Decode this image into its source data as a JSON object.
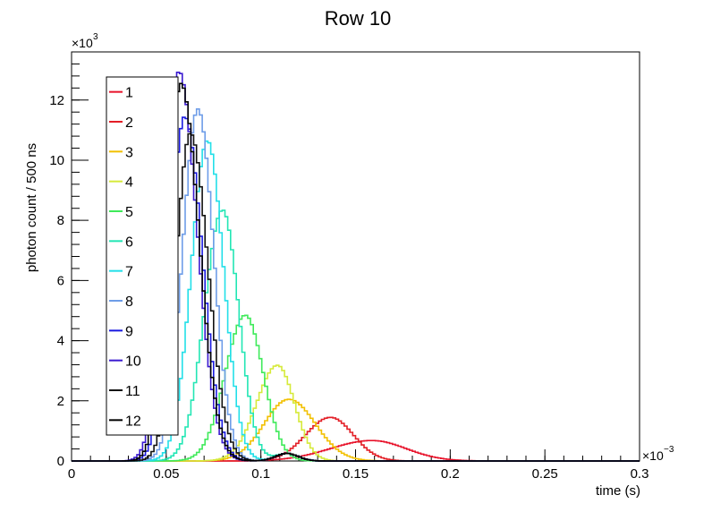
{
  "chart_data": {
    "type": "line",
    "title": "Row 10",
    "xlabel": "time (s)",
    "ylabel": "photon count / 500 ns",
    "x_multiplier_label": "×10",
    "x_multiplier_exp": "−3",
    "y_multiplier_label": "×10",
    "y_multiplier_exp": "3",
    "xlim": [
      0,
      0.3
    ],
    "ylim": [
      0,
      13.6
    ],
    "x_ticks": [
      0,
      0.05,
      0.1,
      0.15,
      0.2,
      0.25,
      0.3
    ],
    "x_tick_labels": [
      "0",
      "0.05",
      "0.1",
      "0.15",
      "0.2",
      "0.25",
      "0.3"
    ],
    "y_ticks": [
      0,
      2,
      4,
      6,
      8,
      10,
      12
    ],
    "y_tick_labels": [
      "0",
      "2",
      "4",
      "6",
      "8",
      "10",
      "12"
    ],
    "grid": false,
    "legend_position": "top-left",
    "series": [
      {
        "name": "1",
        "color": "#e8142c",
        "peak_x": 0.158,
        "peak_y": 0.68,
        "sigma_l": 0.022,
        "sigma_r": 0.018
      },
      {
        "name": "2",
        "color": "#e31e26",
        "peak_x": 0.136,
        "peak_y": 1.45,
        "sigma_l": 0.013,
        "sigma_r": 0.012
      },
      {
        "name": "3",
        "color": "#f2c000",
        "peak_x": 0.114,
        "peak_y": 2.05,
        "sigma_l": 0.013,
        "sigma_r": 0.014
      },
      {
        "name": "4",
        "color": "#d6ea3a",
        "peak_x": 0.108,
        "peak_y": 3.18,
        "sigma_l": 0.011,
        "sigma_r": 0.009
      },
      {
        "name": "5",
        "color": "#3fea5a",
        "peak_x": 0.091,
        "peak_y": 4.85,
        "sigma_l": 0.0105,
        "sigma_r": 0.0095
      },
      {
        "name": "6",
        "color": "#22e6b4",
        "peak_x": 0.079,
        "peak_y": 8.35,
        "sigma_l": 0.0095,
        "sigma_r": 0.0085
      },
      {
        "name": "7",
        "color": "#22dfe8",
        "peak_x": 0.071,
        "peak_y": 10.65,
        "sigma_l": 0.0085,
        "sigma_r": 0.0085
      },
      {
        "name": "8",
        "color": "#6e9de8",
        "peak_x": 0.066,
        "peak_y": 11.7,
        "sigma_l": 0.008,
        "sigma_r": 0.0082
      },
      {
        "name": "9",
        "color": "#1a1ae0",
        "peak_x": 0.059,
        "peak_y": 11.45,
        "sigma_l": 0.0075,
        "sigma_r": 0.0092
      },
      {
        "name": "10",
        "color": "#3a1ad0",
        "peak_x": 0.056,
        "peak_y": 12.95,
        "sigma_l": 0.0075,
        "sigma_r": 0.0095
      },
      {
        "name": "11",
        "color": "#111111",
        "peak_x": 0.062,
        "peak_y": 10.9,
        "sigma_l": 0.0075,
        "sigma_r": 0.0092
      },
      {
        "name": "12",
        "color": "#000000",
        "peak_x": 0.057,
        "peak_y": 12.55,
        "sigma_l": 0.0072,
        "sigma_r": 0.0095
      }
    ]
  }
}
